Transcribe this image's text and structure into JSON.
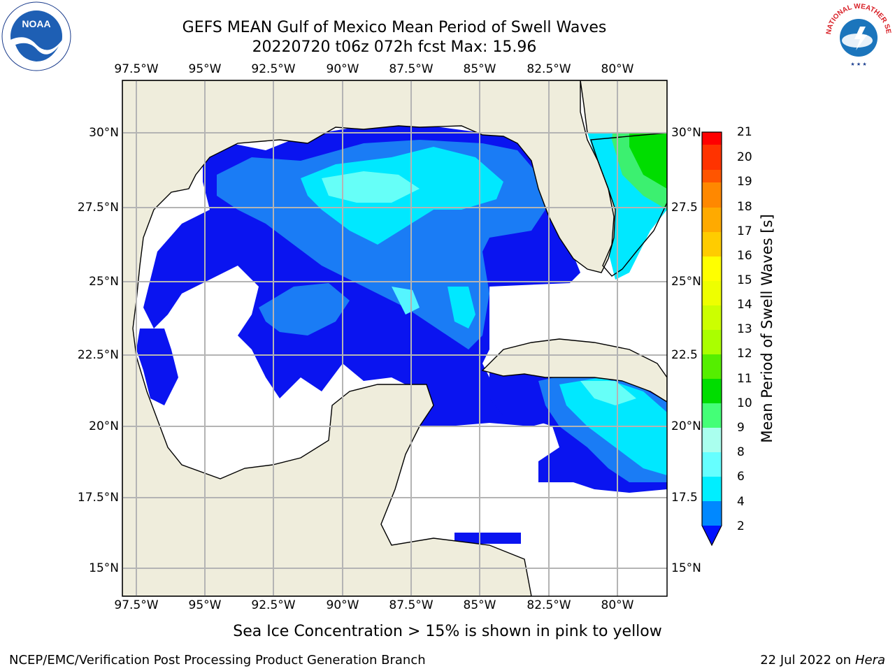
{
  "title": {
    "line1": "GEFS MEAN Gulf of Mexico Mean Period of Swell Waves",
    "line2": "20220720 t06z 072h fcst   Max: 15.96"
  },
  "map": {
    "lon_labels": [
      "97.5°W",
      "95°W",
      "92.5°W",
      "90°W",
      "87.5°W",
      "85°W",
      "82.5°W",
      "80°W"
    ],
    "lat_labels_left": [
      "30°N",
      "27.5°N",
      "25°N",
      "22.5°N",
      "20°N",
      "17.5°N",
      "15°N"
    ],
    "lat_labels_right": [
      "30°N",
      "27.5",
      "25°N",
      "22.5",
      "20°N",
      "17.5",
      "15°N"
    ],
    "lon_range": [
      -98,
      -78.2
    ],
    "lat_range": [
      14.0,
      31.8
    ],
    "land_color": "#efeddc",
    "ocean_nodata_color": "#ffffff",
    "grid_color": "#b0b0b0"
  },
  "colorbar": {
    "title": "Mean Period of Swell Waves [s]",
    "labels": [
      "21",
      "20",
      "19",
      "18",
      "17",
      "16",
      "15",
      "14",
      "13",
      "12",
      "11",
      "10",
      "9",
      "8",
      "6",
      "4",
      "2"
    ],
    "colors": [
      "#ff0000",
      "#ff3300",
      "#ff5500",
      "#ff8800",
      "#ffaa00",
      "#ffcc00",
      "#ffff00",
      "#eeff00",
      "#ccff00",
      "#88ee00",
      "#00dd00",
      "#44ff66",
      "#aaffee",
      "#66ffff",
      "#00eeff",
      "#00ccff",
      "#0077ff",
      "#0011ff"
    ]
  },
  "note": "Sea Ice Concentration > 15% is shown in pink to yellow",
  "footer": {
    "left": "NCEP/EMC/Verification Post Processing Product Generation Branch",
    "right_date": "22 Jul 2022 on ",
    "right_machine": "Hera"
  },
  "logos": {
    "left": "NOAA",
    "right": "NATIONAL WEATHER SERVICE"
  }
}
